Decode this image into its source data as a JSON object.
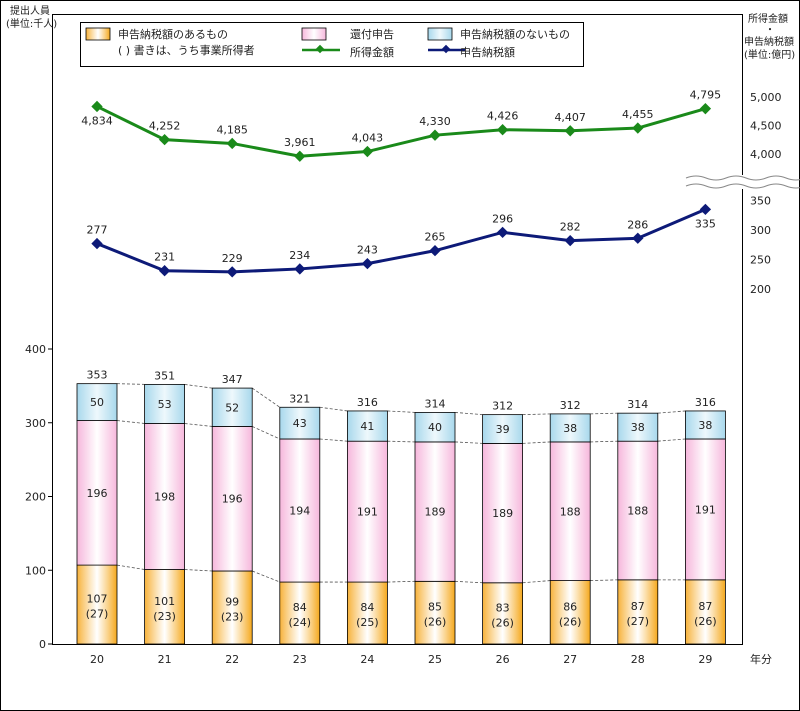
{
  "chart_data": {
    "type": "bar+line",
    "categories": [
      "20",
      "21",
      "22",
      "23",
      "24",
      "25",
      "26",
      "27",
      "28",
      "29"
    ],
    "x_unit": "年分",
    "left_axis": {
      "label_line1": "提出人員",
      "label_line2": "(単位:千人)",
      "ticks": [
        0,
        100,
        200,
        300,
        400
      ],
      "ylim": [
        0,
        400
      ]
    },
    "right_axis_upper": {
      "label_line1": "所得金額",
      "label_sep": "・",
      "ticks": [
        "4,000",
        "4,500",
        "5,000"
      ]
    },
    "right_axis_lower": {
      "label_line1": "申告納税額",
      "label_line2": "(単位:億円)",
      "ticks": [
        "200",
        "250",
        "300",
        "350"
      ]
    },
    "legend": {
      "taxed": "申告納税額のあるもの",
      "taxed_note": "( ) 書きは、うち事業所得者",
      "refund": "還付申告",
      "untaxed": "申告納税額のないもの",
      "income": "所得金額",
      "tax": "申告納税額"
    },
    "stack_series": [
      {
        "key": "taxed",
        "values": [
          107,
          101,
          99,
          84,
          84,
          85,
          83,
          86,
          87,
          87
        ],
        "sub_values": [
          "(27)",
          "(23)",
          "(23)",
          "(24)",
          "(25)",
          "(26)",
          "(26)",
          "(26)",
          "(27)",
          "(26)"
        ]
      },
      {
        "key": "refund",
        "values": [
          196,
          198,
          196,
          194,
          191,
          189,
          189,
          188,
          188,
          191
        ]
      },
      {
        "key": "untaxed",
        "values": [
          50,
          53,
          52,
          43,
          41,
          40,
          39,
          38,
          38,
          38
        ]
      }
    ],
    "totals": [
      353,
      351,
      347,
      321,
      316,
      314,
      312,
      312,
      314,
      316
    ],
    "line_series": [
      {
        "key": "income",
        "values": [
          4834,
          4252,
          4185,
          3961,
          4043,
          4330,
          4426,
          4407,
          4455,
          4795
        ],
        "labels": [
          "4,834",
          "4,252",
          "4,185",
          "3,961",
          "4,043",
          "4,330",
          "4,426",
          "4,407",
          "4,455",
          "4,795"
        ]
      },
      {
        "key": "tax",
        "values": [
          277,
          231,
          229,
          234,
          243,
          265,
          296,
          282,
          286,
          335
        ],
        "labels": [
          "277",
          "231",
          "229",
          "234",
          "243",
          "265",
          "296",
          "282",
          "286",
          "335"
        ]
      }
    ],
    "colors": {
      "taxed_top": "#ffffff",
      "taxed_bottom": "#f5a81c",
      "refund_top": "#f8c8e4",
      "refund_mid": "#ffffff",
      "untaxed": "#d6eef7",
      "untaxed_dark": "#5bb0d4",
      "income": "#1a8a1a",
      "tax": "#0d1a78"
    }
  }
}
